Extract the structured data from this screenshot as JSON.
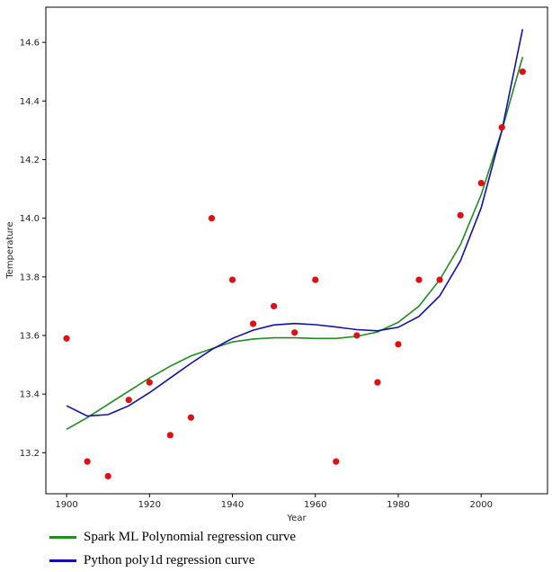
{
  "chart_data": {
    "type": "scatter",
    "xlabel": "Year",
    "ylabel": "Temperature",
    "xlim": [
      1895,
      2016
    ],
    "ylim": [
      13.06,
      14.72
    ],
    "x_ticks": [
      1900,
      1920,
      1940,
      1960,
      1980,
      2000
    ],
    "y_ticks": [
      13.2,
      13.4,
      13.6,
      13.8,
      14.0,
      14.2,
      14.4,
      14.6
    ],
    "x_tick_labels": [
      "1900",
      "1920",
      "1940",
      "1960",
      "1980",
      "2000"
    ],
    "y_tick_labels": [
      "13.2",
      "13.4",
      "13.6",
      "13.8",
      "14.0",
      "14.2",
      "14.4",
      "14.6"
    ],
    "grid": false,
    "legend_position": "bottom",
    "points": {
      "color": "#dd1111",
      "x": [
        1900,
        1905,
        1910,
        1915,
        1920,
        1925,
        1930,
        1935,
        1940,
        1945,
        1950,
        1955,
        1960,
        1965,
        1970,
        1975,
        1980,
        1985,
        1990,
        1995,
        2000,
        2005,
        2010
      ],
      "y": [
        13.59,
        13.17,
        13.12,
        13.38,
        13.44,
        13.26,
        13.32,
        14.0,
        13.79,
        13.64,
        13.7,
        13.61,
        13.79,
        13.17,
        13.6,
        13.44,
        13.57,
        13.79,
        13.79,
        14.01,
        14.12,
        14.31,
        14.5
      ]
    },
    "series": [
      {
        "name": "Spark ML Polynomial regression curve",
        "color": "#228b22",
        "x": [
          1900,
          1905,
          1910,
          1915,
          1920,
          1925,
          1930,
          1935,
          1940,
          1945,
          1950,
          1955,
          1960,
          1965,
          1970,
          1975,
          1980,
          1985,
          1990,
          1995,
          2000,
          2005,
          2010
        ],
        "values": [
          13.28,
          13.32,
          13.365,
          13.41,
          13.455,
          13.495,
          13.53,
          13.555,
          13.578,
          13.588,
          13.592,
          13.592,
          13.59,
          13.59,
          13.597,
          13.612,
          13.645,
          13.7,
          13.79,
          13.91,
          14.08,
          14.3,
          14.55
        ]
      },
      {
        "name": "Python poly1d regression curve",
        "color": "#1010aa",
        "x": [
          1900,
          1905,
          1910,
          1915,
          1920,
          1925,
          1930,
          1935,
          1940,
          1945,
          1950,
          1955,
          1960,
          1965,
          1970,
          1975,
          1980,
          1985,
          1990,
          1995,
          2000,
          2005,
          2010
        ],
        "values": [
          13.36,
          13.325,
          13.33,
          13.36,
          13.405,
          13.455,
          13.505,
          13.552,
          13.59,
          13.618,
          13.636,
          13.641,
          13.637,
          13.629,
          13.62,
          13.616,
          13.628,
          13.665,
          13.735,
          13.855,
          14.035,
          14.3,
          14.645
        ]
      }
    ]
  }
}
